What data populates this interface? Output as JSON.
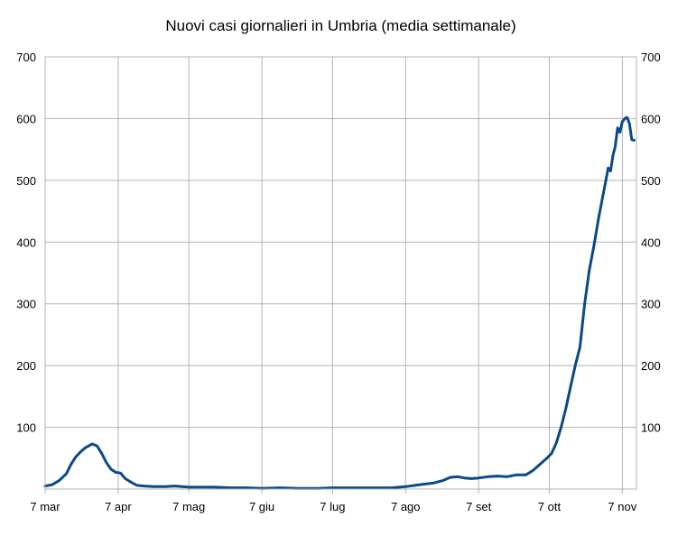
{
  "chart_data": {
    "type": "line",
    "title": "Nuovi casi giornalieri in Umbria (media settimanale)",
    "xlabel": "",
    "ylabel": "",
    "ylim": [
      0,
      700
    ],
    "yticks": [
      100,
      200,
      300,
      400,
      500,
      600,
      700
    ],
    "y_axis_sides": [
      "left",
      "right"
    ],
    "xlim": [
      "2020-03-07",
      "2020-11-13"
    ],
    "xticks": [
      {
        "date": "2020-03-07",
        "label": "7 mar"
      },
      {
        "date": "2020-04-07",
        "label": "7 apr"
      },
      {
        "date": "2020-05-07",
        "label": "7 mag"
      },
      {
        "date": "2020-06-07",
        "label": "7 giu"
      },
      {
        "date": "2020-07-07",
        "label": "7 lug"
      },
      {
        "date": "2020-08-07",
        "label": "7 ago"
      },
      {
        "date": "2020-09-07",
        "label": "7 set"
      },
      {
        "date": "2020-10-07",
        "label": "7 ott"
      },
      {
        "date": "2020-11-07",
        "label": "7 nov"
      }
    ],
    "grid": true,
    "series_color": "#0b4a85",
    "grid_color": "#b3b3b3",
    "series": [
      {
        "name": "",
        "points": [
          [
            "2020-03-07",
            5
          ],
          [
            "2020-03-10",
            7
          ],
          [
            "2020-03-13",
            14
          ],
          [
            "2020-03-16",
            25
          ],
          [
            "2020-03-18",
            40
          ],
          [
            "2020-03-20",
            52
          ],
          [
            "2020-03-22",
            60
          ],
          [
            "2020-03-24",
            67
          ],
          [
            "2020-03-26",
            71
          ],
          [
            "2020-03-27",
            73
          ],
          [
            "2020-03-29",
            70
          ],
          [
            "2020-03-31",
            58
          ],
          [
            "2020-04-02",
            43
          ],
          [
            "2020-04-04",
            32
          ],
          [
            "2020-04-06",
            27
          ],
          [
            "2020-04-08",
            26
          ],
          [
            "2020-04-10",
            17
          ],
          [
            "2020-04-13",
            10
          ],
          [
            "2020-04-15",
            6
          ],
          [
            "2020-04-18",
            5
          ],
          [
            "2020-04-22",
            4
          ],
          [
            "2020-04-27",
            4
          ],
          [
            "2020-05-01",
            5
          ],
          [
            "2020-05-07",
            3
          ],
          [
            "2020-05-12",
            3
          ],
          [
            "2020-05-18",
            3
          ],
          [
            "2020-05-25",
            2
          ],
          [
            "2020-06-01",
            2
          ],
          [
            "2020-06-07",
            1
          ],
          [
            "2020-06-15",
            2
          ],
          [
            "2020-06-22",
            1
          ],
          [
            "2020-07-01",
            1
          ],
          [
            "2020-07-07",
            2
          ],
          [
            "2020-07-15",
            2
          ],
          [
            "2020-07-22",
            2
          ],
          [
            "2020-08-01",
            2
          ],
          [
            "2020-08-07",
            4
          ],
          [
            "2020-08-11",
            6
          ],
          [
            "2020-08-15",
            8
          ],
          [
            "2020-08-19",
            10
          ],
          [
            "2020-08-23",
            14
          ],
          [
            "2020-08-26",
            19
          ],
          [
            "2020-08-29",
            20
          ],
          [
            "2020-09-01",
            18
          ],
          [
            "2020-09-04",
            17
          ],
          [
            "2020-09-07",
            18
          ],
          [
            "2020-09-11",
            20
          ],
          [
            "2020-09-15",
            21
          ],
          [
            "2020-09-19",
            20
          ],
          [
            "2020-09-23",
            23
          ],
          [
            "2020-09-27",
            23
          ],
          [
            "2020-09-30",
            30
          ],
          [
            "2020-10-03",
            40
          ],
          [
            "2020-10-06",
            50
          ],
          [
            "2020-10-08",
            58
          ],
          [
            "2020-10-10",
            75
          ],
          [
            "2020-10-12",
            100
          ],
          [
            "2020-10-14",
            130
          ],
          [
            "2020-10-16",
            165
          ],
          [
            "2020-10-18",
            200
          ],
          [
            "2020-10-20",
            230
          ],
          [
            "2020-10-22",
            300
          ],
          [
            "2020-10-24",
            355
          ],
          [
            "2020-10-26",
            395
          ],
          [
            "2020-10-28",
            440
          ],
          [
            "2020-10-30",
            480
          ],
          [
            "2020-11-01",
            520
          ],
          [
            "2020-11-02",
            515
          ],
          [
            "2020-11-03",
            540
          ],
          [
            "2020-11-04",
            555
          ],
          [
            "2020-11-05",
            585
          ],
          [
            "2020-11-06",
            578
          ],
          [
            "2020-11-07",
            595
          ],
          [
            "2020-11-08",
            600
          ],
          [
            "2020-11-09",
            602
          ],
          [
            "2020-11-10",
            592
          ],
          [
            "2020-11-11",
            566
          ],
          [
            "2020-11-12",
            565
          ]
        ]
      }
    ]
  }
}
